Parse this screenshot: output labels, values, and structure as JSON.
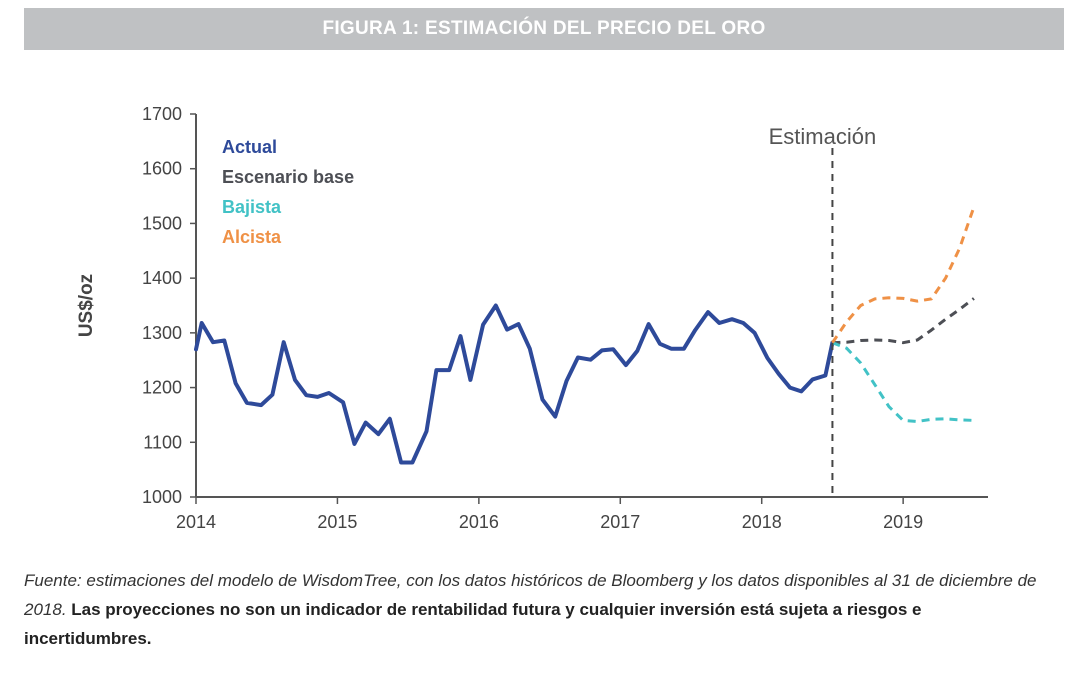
{
  "header": {
    "title": "FIGURA 1: ESTIMACIÓN DEL PRECIO DEL ORO"
  },
  "footer": {
    "source_italic": "Fuente: estimaciones del modelo de WisdomTree, con los datos históricos de Bloomberg y los datos disponibles al 31 de diciembre de 2018.",
    "disclaimer_bold": "Las proyecciones no son un indicador de rentabilidad futura y cualquier inversión está sujeta a riesgos e incertidumbres."
  },
  "chart_data": {
    "type": "line",
    "ylabel": "US$/oz",
    "xlabel": "",
    "ylim": [
      1000,
      1700
    ],
    "xlim": [
      2014.0,
      2019.6
    ],
    "y_ticks": [
      1000,
      1100,
      1200,
      1300,
      1400,
      1500,
      1600,
      1700
    ],
    "x_ticks": [
      "2014",
      "2015",
      "2016",
      "2017",
      "2018",
      "2019"
    ],
    "grid": false,
    "legend_position": "top-left",
    "annotation": {
      "label": "Estimación",
      "x": 2018.5
    },
    "series": [
      {
        "name": "Actual",
        "color": "#2e4a9a",
        "style": "solid",
        "x": [
          2014.0,
          2014.04,
          2014.12,
          2014.2,
          2014.28,
          2014.36,
          2014.46,
          2014.54,
          2014.62,
          2014.7,
          2014.78,
          2014.86,
          2014.94,
          2015.04,
          2015.12,
          2015.2,
          2015.29,
          2015.37,
          2015.45,
          2015.53,
          2015.63,
          2015.7,
          2015.79,
          2015.87,
          2015.94,
          2016.03,
          2016.12,
          2016.2,
          2016.28,
          2016.36,
          2016.45,
          2016.54,
          2016.62,
          2016.7,
          2016.79,
          2016.87,
          2016.95,
          2017.04,
          2017.12,
          2017.2,
          2017.28,
          2017.36,
          2017.45,
          2017.53,
          2017.62,
          2017.7,
          2017.79,
          2017.87,
          2017.95,
          2018.04,
          2018.12,
          2018.2,
          2018.28,
          2018.36,
          2018.45,
          2018.5
        ],
        "values": [
          1270,
          1318,
          1283,
          1286,
          1208,
          1172,
          1168,
          1187,
          1283,
          1214,
          1186,
          1183,
          1190,
          1173,
          1097,
          1136,
          1115,
          1143,
          1063,
          1063,
          1120,
          1232,
          1232,
          1294,
          1214,
          1315,
          1350,
          1306,
          1316,
          1271,
          1178,
          1147,
          1212,
          1255,
          1251,
          1268,
          1270,
          1241,
          1267,
          1316,
          1280,
          1271,
          1271,
          1305,
          1338,
          1318,
          1325,
          1318,
          1300,
          1254,
          1225,
          1200,
          1193,
          1215,
          1222,
          1282
        ]
      },
      {
        "name": "Escenario base",
        "color": "#4d4f55",
        "style": "dashed",
        "x": [
          2018.5,
          2018.6,
          2018.7,
          2018.8,
          2018.9,
          2019.0,
          2019.1,
          2019.2,
          2019.3,
          2019.4,
          2019.5
        ],
        "values": [
          1282,
          1283,
          1286,
          1287,
          1286,
          1282,
          1287,
          1305,
          1325,
          1343,
          1363
        ]
      },
      {
        "name": "Bajista",
        "color": "#42c2c6",
        "style": "dashed",
        "x": [
          2018.5,
          2018.6,
          2018.7,
          2018.8,
          2018.9,
          2019.0,
          2019.1,
          2019.2,
          2019.3,
          2019.4,
          2019.5
        ],
        "values": [
          1282,
          1272,
          1245,
          1205,
          1165,
          1140,
          1138,
          1142,
          1143,
          1141,
          1140
        ]
      },
      {
        "name": "Alcista",
        "color": "#ef9146",
        "style": "dashed",
        "x": [
          2018.5,
          2018.6,
          2018.7,
          2018.8,
          2018.9,
          2019.0,
          2019.1,
          2019.2,
          2019.3,
          2019.4,
          2019.5
        ],
        "values": [
          1282,
          1320,
          1350,
          1362,
          1364,
          1363,
          1358,
          1362,
          1400,
          1455,
          1530
        ]
      }
    ]
  }
}
